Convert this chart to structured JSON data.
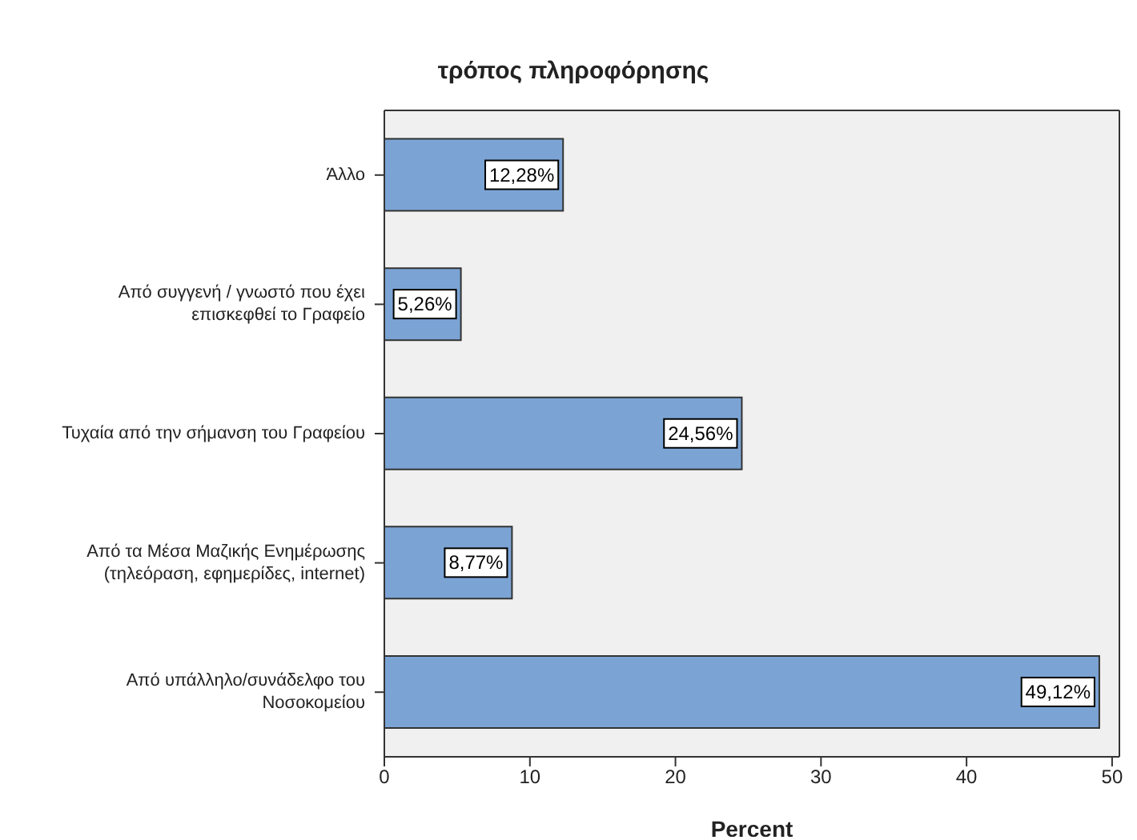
{
  "chart_data": {
    "type": "bar",
    "orientation": "horizontal",
    "title": "τρόπος πληροφόρησης",
    "xlabel": "Percent",
    "categories": [
      "Άλλο",
      "Από συγγενή / γνωστό που έχει επισκεφθεί το Γραφείο",
      "Τυχαία από την σήμανση του Γραφείου",
      "Από τα Μέσα Μαζικής Ενημέρωσης (τηλεόραση, εφημερίδες, internet)",
      "Από υπάλληλο/συνάδελφο του Νοσοκομείου"
    ],
    "values": [
      12.28,
      5.26,
      24.56,
      8.77,
      49.12
    ],
    "value_labels": [
      "12,28%",
      "5,26%",
      "24,56%",
      "8,77%",
      "49,12%"
    ],
    "color": "#7ba4d4",
    "xlim": [
      0,
      50.5
    ],
    "xticks": [
      0,
      10,
      20,
      30,
      40,
      50
    ],
    "grid": false
  }
}
